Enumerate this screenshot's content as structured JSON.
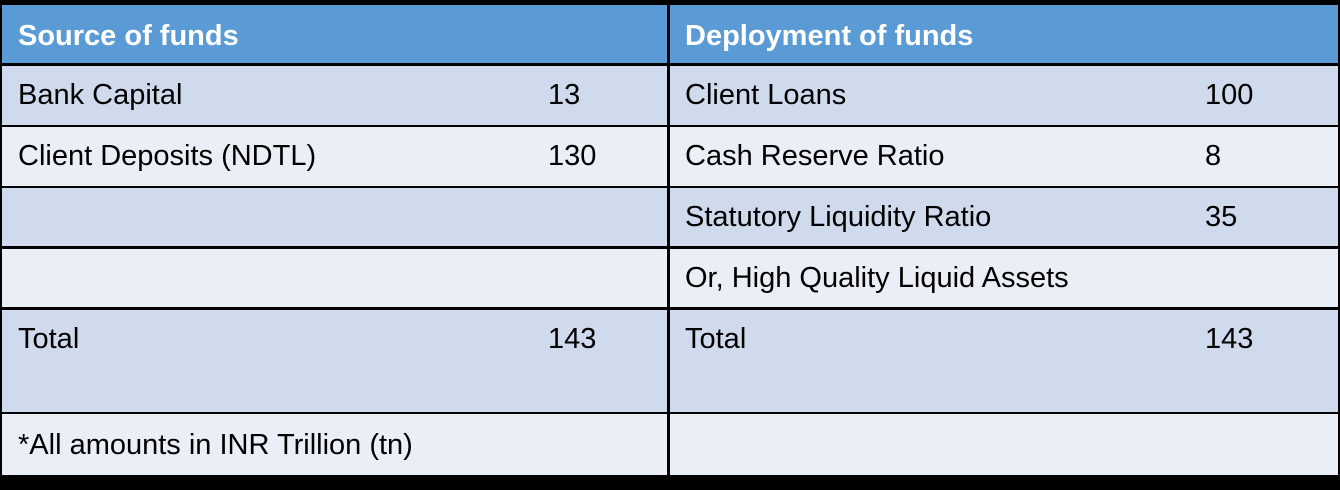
{
  "table": {
    "header": [
      "Source of funds",
      "Deployment of funds"
    ],
    "rows": [
      [
        "Bank Capital",
        13,
        "Client Loans",
        100
      ],
      [
        "Client Deposits (NDTL)",
        130,
        "Cash Reserve Ratio",
        8
      ],
      [
        null,
        null,
        "Statutory Liquidity Ratio",
        35
      ],
      [
        null,
        null,
        "Or, High Quality Liquid Assets",
        null
      ],
      [
        "Total",
        143,
        "Total",
        143
      ]
    ],
    "footnote": "*All amounts in INR Trillion (tn)"
  }
}
